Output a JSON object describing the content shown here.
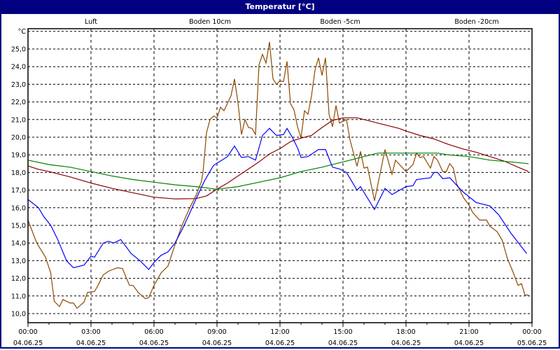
{
  "window": {
    "title": "Temperatur [°C]"
  },
  "chart_data": {
    "type": "line",
    "title": "Temperatur [°C]",
    "ylabel": "°C",
    "ylim": [
      10,
      26
    ],
    "yticks": [
      "10,0",
      "11,0",
      "12,0",
      "13,0",
      "14,0",
      "15,0",
      "16,0",
      "17,0",
      "18,0",
      "19,0",
      "20,0",
      "21,0",
      "22,0",
      "23,0",
      "24,0",
      "25,0"
    ],
    "xlim": [
      "04.06.25 00:00",
      "05.06.25 00:00"
    ],
    "xticks": [
      {
        "time": "00:00",
        "date": "04.06.25"
      },
      {
        "time": "03:00",
        "date": "04.06.25"
      },
      {
        "time": "06:00",
        "date": "04.06.25"
      },
      {
        "time": "09:00",
        "date": "04.06.25"
      },
      {
        "time": "12:00",
        "date": "04.06.25"
      },
      {
        "time": "15:00",
        "date": "04.06.25"
      },
      {
        "time": "18:00",
        "date": "04.06.25"
      },
      {
        "time": "21:00",
        "date": "04.06.25"
      },
      {
        "time": "00:00",
        "date": "05.06.25"
      }
    ],
    "grid": true,
    "legend_position": "top",
    "series": [
      {
        "name": "Luft",
        "color": "#0000ff",
        "points": [
          [
            "00:00",
            16.47
          ],
          [
            "00:30",
            16.0
          ],
          [
            "00:45",
            15.5
          ],
          [
            "01:05",
            15.0
          ],
          [
            "01:25",
            14.2
          ],
          [
            "01:50",
            13.0
          ],
          [
            "02:10",
            12.6
          ],
          [
            "02:40",
            12.75
          ],
          [
            "03:00",
            13.25
          ],
          [
            "03:10",
            13.2
          ],
          [
            "03:35",
            14.0
          ],
          [
            "03:50",
            14.1
          ],
          [
            "04:05",
            14.0
          ],
          [
            "04:25",
            14.2
          ],
          [
            "04:55",
            13.4
          ],
          [
            "05:20",
            13.0
          ],
          [
            "05:45",
            12.5
          ],
          [
            "06:00",
            12.9
          ],
          [
            "06:20",
            13.3
          ],
          [
            "06:40",
            13.5
          ],
          [
            "07:00",
            14.0
          ],
          [
            "07:20",
            14.75
          ],
          [
            "07:40",
            15.6
          ],
          [
            "08:00",
            16.5
          ],
          [
            "08:25",
            17.55
          ],
          [
            "08:50",
            18.4
          ],
          [
            "09:10",
            18.65
          ],
          [
            "09:30",
            18.9
          ],
          [
            "09:50",
            19.5
          ],
          [
            "10:10",
            18.85
          ],
          [
            "10:30",
            18.9
          ],
          [
            "10:50",
            18.7
          ],
          [
            "11:10",
            20.1
          ],
          [
            "11:30",
            20.5
          ],
          [
            "11:50",
            20.1
          ],
          [
            "12:10",
            20.15
          ],
          [
            "12:20",
            20.5
          ],
          [
            "12:35",
            20.0
          ],
          [
            "12:50",
            19.4
          ],
          [
            "13:00",
            18.85
          ],
          [
            "13:20",
            18.9
          ],
          [
            "13:50",
            19.3
          ],
          [
            "14:10",
            19.3
          ],
          [
            "14:30",
            18.3
          ],
          [
            "14:50",
            18.2
          ],
          [
            "15:10",
            18.0
          ],
          [
            "15:40",
            17.0
          ],
          [
            "15:50",
            17.2
          ],
          [
            "16:30",
            15.9
          ],
          [
            "17:00",
            17.1
          ],
          [
            "17:20",
            16.75
          ],
          [
            "18:00",
            17.2
          ],
          [
            "18:20",
            17.25
          ],
          [
            "18:30",
            17.6
          ],
          [
            "19:10",
            17.7
          ],
          [
            "19:20",
            18.0
          ],
          [
            "19:30",
            18.0
          ],
          [
            "19:45",
            17.65
          ],
          [
            "20:05",
            17.7
          ],
          [
            "20:40",
            16.95
          ],
          [
            "21:20",
            16.3
          ],
          [
            "22:00",
            16.1
          ],
          [
            "22:25",
            15.6
          ],
          [
            "23:00",
            14.55
          ],
          [
            "23:45",
            13.4
          ]
        ]
      },
      {
        "name": "Boden 10cm",
        "color": "#8b4a00",
        "points": [
          [
            "00:00",
            15.3
          ],
          [
            "00:25",
            14.0
          ],
          [
            "00:50",
            13.2
          ],
          [
            "01:05",
            12.3
          ],
          [
            "01:15",
            10.7
          ],
          [
            "01:30",
            10.4
          ],
          [
            "01:40",
            10.8
          ],
          [
            "02:00",
            10.6
          ],
          [
            "02:10",
            10.6
          ],
          [
            "02:20",
            10.3
          ],
          [
            "02:40",
            10.65
          ],
          [
            "02:50",
            11.2
          ],
          [
            "03:10",
            11.25
          ],
          [
            "03:20",
            11.6
          ],
          [
            "03:35",
            12.2
          ],
          [
            "03:50",
            12.4
          ],
          [
            "04:15",
            12.6
          ],
          [
            "04:30",
            12.55
          ],
          [
            "04:50",
            11.6
          ],
          [
            "05:00",
            11.6
          ],
          [
            "05:15",
            11.2
          ],
          [
            "05:35",
            10.85
          ],
          [
            "05:45",
            10.9
          ],
          [
            "06:00",
            11.6
          ],
          [
            "06:20",
            12.3
          ],
          [
            "06:40",
            12.7
          ],
          [
            "07:00",
            13.9
          ],
          [
            "07:20",
            15.0
          ],
          [
            "07:40",
            15.9
          ],
          [
            "08:00",
            16.7
          ],
          [
            "08:15",
            17.45
          ],
          [
            "08:20",
            18.0
          ],
          [
            "08:30",
            20.25
          ],
          [
            "08:40",
            21.0
          ],
          [
            "08:50",
            21.2
          ],
          [
            "09:00",
            21.1
          ],
          [
            "09:10",
            21.7
          ],
          [
            "09:20",
            21.5
          ],
          [
            "09:40",
            22.35
          ],
          [
            "09:50",
            23.3
          ],
          [
            "10:00",
            21.95
          ],
          [
            "10:10",
            20.15
          ],
          [
            "10:20",
            21.0
          ],
          [
            "10:30",
            20.55
          ],
          [
            "10:40",
            20.5
          ],
          [
            "10:50",
            20.15
          ],
          [
            "11:00",
            24.1
          ],
          [
            "11:10",
            24.7
          ],
          [
            "11:20",
            24.2
          ],
          [
            "11:30",
            25.4
          ],
          [
            "11:40",
            23.3
          ],
          [
            "11:50",
            23.0
          ],
          [
            "12:00",
            23.2
          ],
          [
            "12:10",
            23.15
          ],
          [
            "12:20",
            24.3
          ],
          [
            "12:30",
            21.9
          ],
          [
            "12:40",
            21.55
          ],
          [
            "12:50",
            20.6
          ],
          [
            "13:00",
            19.95
          ],
          [
            "13:10",
            21.5
          ],
          [
            "13:20",
            21.3
          ],
          [
            "13:30",
            22.35
          ],
          [
            "13:40",
            23.8
          ],
          [
            "13:50",
            24.5
          ],
          [
            "14:00",
            23.5
          ],
          [
            "14:10",
            24.5
          ],
          [
            "14:20",
            21.3
          ],
          [
            "14:30",
            20.6
          ],
          [
            "14:40",
            21.8
          ],
          [
            "14:50",
            20.8
          ],
          [
            "15:10",
            21.0
          ],
          [
            "15:20",
            19.85
          ],
          [
            "15:40",
            18.35
          ],
          [
            "15:50",
            19.2
          ],
          [
            "16:00",
            18.25
          ],
          [
            "16:10",
            18.3
          ],
          [
            "16:30",
            16.4
          ],
          [
            "17:00",
            19.3
          ],
          [
            "17:20",
            17.9
          ],
          [
            "17:30",
            18.7
          ],
          [
            "18:00",
            18.05
          ],
          [
            "18:20",
            18.45
          ],
          [
            "18:30",
            19.1
          ],
          [
            "18:40",
            18.85
          ],
          [
            "18:50",
            18.9
          ],
          [
            "19:10",
            18.25
          ],
          [
            "19:20",
            18.9
          ],
          [
            "19:30",
            18.7
          ],
          [
            "19:45",
            18.05
          ],
          [
            "19:55",
            18.05
          ],
          [
            "20:05",
            18.5
          ],
          [
            "20:15",
            18.25
          ],
          [
            "20:25",
            17.35
          ],
          [
            "20:45",
            16.55
          ],
          [
            "21:00",
            16.15
          ],
          [
            "21:10",
            15.75
          ],
          [
            "21:30",
            15.3
          ],
          [
            "21:50",
            15.3
          ],
          [
            "22:00",
            14.95
          ],
          [
            "22:20",
            14.65
          ],
          [
            "22:35",
            14.15
          ],
          [
            "22:50",
            13.1
          ],
          [
            "23:05",
            12.4
          ],
          [
            "23:20",
            11.6
          ],
          [
            "23:30",
            11.7
          ],
          [
            "23:40",
            11.05
          ],
          [
            "23:50",
            11.05
          ]
        ]
      },
      {
        "name": "Boden -5cm",
        "color": "#8b0000",
        "points": [
          [
            "00:00",
            18.37
          ],
          [
            "00:30",
            18.18
          ],
          [
            "01:00",
            18.05
          ],
          [
            "02:00",
            17.75
          ],
          [
            "03:00",
            17.4
          ],
          [
            "04:00",
            17.1
          ],
          [
            "05:00",
            16.85
          ],
          [
            "06:00",
            16.6
          ],
          [
            "07:00",
            16.5
          ],
          [
            "08:00",
            16.52
          ],
          [
            "08:30",
            16.67
          ],
          [
            "09:00",
            17.05
          ],
          [
            "09:30",
            17.4
          ],
          [
            "10:00",
            17.8
          ],
          [
            "10:30",
            18.2
          ],
          [
            "11:00",
            18.6
          ],
          [
            "11:30",
            19.05
          ],
          [
            "12:00",
            19.35
          ],
          [
            "12:30",
            19.75
          ],
          [
            "13:00",
            19.95
          ],
          [
            "13:30",
            20.1
          ],
          [
            "14:00",
            20.55
          ],
          [
            "14:30",
            20.95
          ],
          [
            "15:00",
            21.1
          ],
          [
            "15:40",
            21.1
          ],
          [
            "16:20",
            20.9
          ],
          [
            "17:00",
            20.7
          ],
          [
            "17:40",
            20.5
          ],
          [
            "18:00",
            20.35
          ],
          [
            "18:40",
            20.1
          ],
          [
            "19:20",
            19.9
          ],
          [
            "20:00",
            19.6
          ],
          [
            "20:40",
            19.35
          ],
          [
            "21:20",
            19.15
          ],
          [
            "22:00",
            18.9
          ],
          [
            "22:40",
            18.65
          ],
          [
            "23:20",
            18.3
          ],
          [
            "23:50",
            18.05
          ]
        ]
      },
      {
        "name": "Boden -20cm",
        "color": "#008000",
        "points": [
          [
            "00:00",
            18.7
          ],
          [
            "01:00",
            18.45
          ],
          [
            "02:00",
            18.3
          ],
          [
            "03:00",
            18.05
          ],
          [
            "04:00",
            17.8
          ],
          [
            "05:00",
            17.6
          ],
          [
            "06:00",
            17.45
          ],
          [
            "07:00",
            17.3
          ],
          [
            "08:00",
            17.2
          ],
          [
            "09:00",
            17.05
          ],
          [
            "10:00",
            17.2
          ],
          [
            "11:00",
            17.45
          ],
          [
            "12:00",
            17.7
          ],
          [
            "13:00",
            18.05
          ],
          [
            "14:00",
            18.3
          ],
          [
            "15:00",
            18.6
          ],
          [
            "16:00",
            18.9
          ],
          [
            "16:40",
            19.1
          ],
          [
            "19:30",
            19.1
          ],
          [
            "20:00",
            19.0
          ],
          [
            "21:00",
            18.9
          ],
          [
            "22:00",
            18.7
          ],
          [
            "23:00",
            18.6
          ],
          [
            "23:50",
            18.5
          ]
        ]
      }
    ]
  }
}
